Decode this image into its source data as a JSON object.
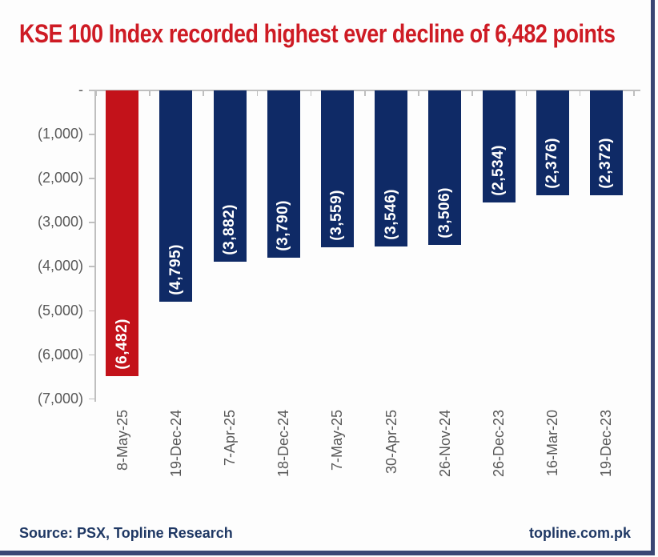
{
  "title": {
    "text": "KSE 100 Index recorded highest ever decline of 6,482 points"
  },
  "chart_data": {
    "type": "bar",
    "title": "KSE 100 Index recorded highest ever decline of 6,482 points",
    "xlabel": "",
    "ylabel": "",
    "categories": [
      "8-May-25",
      "19-Dec-24",
      "7-Apr-25",
      "18-Dec-24",
      "7-May-25",
      "30-Apr-25",
      "26-Nov-24",
      "26-Dec-23",
      "16-Mar-20",
      "19-Dec-23"
    ],
    "values": [
      -6482,
      -4795,
      -3882,
      -3790,
      -3559,
      -3546,
      -3506,
      -2534,
      -2376,
      -2372
    ],
    "bar_labels": [
      "(6,482)",
      "(4,795)",
      "(3,882)",
      "(3,790)",
      "(3,559)",
      "(3,546)",
      "(3,506)",
      "(2,534)",
      "(2,376)",
      "(2,372)"
    ],
    "highlight_index": 0,
    "y_tick_labels": [
      "-",
      "(1,000)",
      "(2,000)",
      "(3,000)",
      "(4,000)",
      "(5,000)",
      "(6,000)",
      "(7,000)"
    ],
    "ylim": [
      -7000,
      0
    ],
    "grid": false,
    "legend_position": "none",
    "bar_label_position": "inside-end",
    "x_label_rotation_deg": 90
  },
  "footer": {
    "source": "Source: PSX,  Topline Research",
    "website": "topline.com.pk"
  },
  "colors": {
    "title_red": "#ce1b24",
    "bar_red": "#c3121a",
    "bar_navy": "#0f2a66",
    "bar_label_white": "#ffffff",
    "axis_gray": "#bfbfbf",
    "axis_text_gray": "#595959",
    "footer_navy": "#1f3864",
    "border_navy": "#3a4674"
  }
}
